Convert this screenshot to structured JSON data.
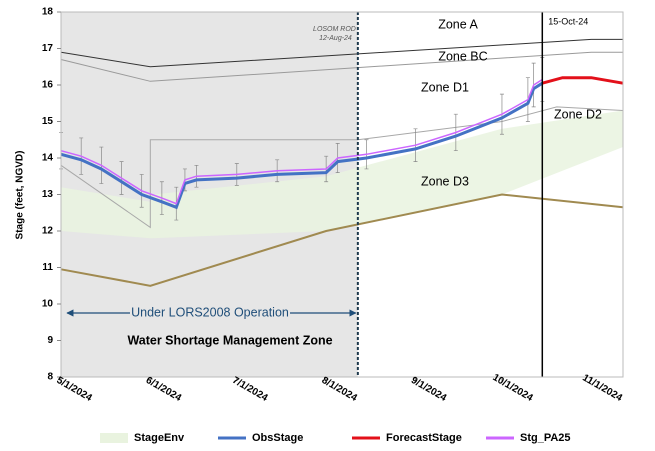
{
  "chart_data": {
    "type": "line",
    "y_label": "Stage (feet, NGVD)",
    "ylim": [
      8,
      18
    ],
    "yticks": [
      8,
      9,
      10,
      11,
      12,
      13,
      14,
      15,
      16,
      17,
      18
    ],
    "xlim": [
      "2024-05-01",
      "2024-11-12"
    ],
    "xticks": [
      {
        "value": "2024-05-01",
        "label": "5/1/2024"
      },
      {
        "value": "2024-06-01",
        "label": "6/1/2024"
      },
      {
        "value": "2024-07-01",
        "label": "7/1/2024"
      },
      {
        "value": "2024-08-01",
        "label": "8/1/2024"
      },
      {
        "value": "2024-09-01",
        "label": "9/1/2024"
      },
      {
        "value": "2024-10-01",
        "label": "10/1/2024"
      },
      {
        "value": "2024-11-01",
        "label": "11/1/2024"
      }
    ],
    "grid": false,
    "legend": "bottom",
    "shade_end": {
      "value": "2024-08-12",
      "label": "12-Aug-24"
    },
    "shade_title": "LOSOM ROD",
    "forecast_date": {
      "value": "2024-10-15",
      "label": "15-Oct-24"
    },
    "annotations": [
      "Zone A",
      "Zone BC",
      "Zone D1",
      "Zone D2",
      "Zone D3",
      "Under LORS2008 Operation",
      "Water Shortage Management Zone"
    ],
    "series": [
      {
        "name": "StageEnv",
        "color": "#e9f3df",
        "x": [
          "2024-05-01",
          "2024-06-01",
          "2024-06-02",
          "2024-08-01",
          "2024-10-01",
          "2024-11-12"
        ],
        "upper": [
          13.2,
          12.8,
          13.0,
          13.5,
          14.8,
          15.3
        ],
        "lower": [
          12.0,
          11.8,
          11.8,
          12.0,
          13.0,
          14.3
        ]
      },
      {
        "name": "ObsStage",
        "color": "#4472c4",
        "x": [
          "2024-05-01",
          "2024-05-08",
          "2024-05-15",
          "2024-05-22",
          "2024-05-29",
          "2024-06-05",
          "2024-06-10",
          "2024-06-13",
          "2024-06-17",
          "2024-07-01",
          "2024-07-15",
          "2024-08-01",
          "2024-08-05",
          "2024-08-15",
          "2024-09-01",
          "2024-09-15",
          "2024-10-01",
          "2024-10-10",
          "2024-10-12",
          "2024-10-15"
        ],
        "values": [
          14.1,
          13.95,
          13.7,
          13.35,
          13.0,
          12.8,
          12.65,
          13.3,
          13.4,
          13.45,
          13.55,
          13.6,
          13.9,
          14.0,
          14.25,
          14.6,
          15.1,
          15.5,
          15.9,
          16.05
        ]
      },
      {
        "name": "ForecastStage",
        "color": "#e3101a",
        "x": [
          "2024-10-15",
          "2024-10-22",
          "2024-11-01",
          "2024-11-12"
        ],
        "values": [
          16.05,
          16.2,
          16.2,
          16.05
        ]
      },
      {
        "name": "Stg_PA25",
        "color": "#cc66ff",
        "x": [
          "2024-05-01",
          "2024-05-08",
          "2024-05-15",
          "2024-05-22",
          "2024-05-29",
          "2024-06-05",
          "2024-06-10",
          "2024-06-13",
          "2024-06-17",
          "2024-07-01",
          "2024-07-15",
          "2024-08-01",
          "2024-08-05",
          "2024-08-15",
          "2024-09-01",
          "2024-09-15",
          "2024-10-01",
          "2024-10-10",
          "2024-10-12",
          "2024-10-15"
        ],
        "values": [
          14.2,
          14.05,
          13.8,
          13.45,
          13.1,
          12.9,
          12.75,
          13.4,
          13.5,
          13.55,
          13.65,
          13.7,
          14.0,
          14.1,
          14.35,
          14.7,
          15.2,
          15.6,
          16.0,
          16.15
        ],
        "errors": [
          0.5,
          0.5,
          0.5,
          0.45,
          0.45,
          0.45,
          0.45,
          0.3,
          0.3,
          0.3,
          0.3,
          0.35,
          0.4,
          0.4,
          0.45,
          0.5,
          0.55,
          0.6,
          0.6,
          0.6
        ]
      }
    ],
    "reference_lines": [
      {
        "color": "#333333",
        "x": [
          "2024-05-01",
          "2024-06-01",
          "2024-11-01",
          "2024-11-12"
        ],
        "values": [
          16.9,
          16.5,
          17.25,
          17.25
        ]
      },
      {
        "color": "#9a9a9a",
        "x": [
          "2024-05-01",
          "2024-06-01",
          "2024-11-01",
          "2024-11-12"
        ],
        "values": [
          16.7,
          16.1,
          16.9,
          16.9
        ]
      },
      {
        "color": "#a8a8a8",
        "x": [
          "2024-05-01",
          "2024-06-01",
          "2024-06-01",
          "2024-08-12",
          "2024-10-01",
          "2024-10-20",
          "2024-11-12"
        ],
        "values": [
          13.8,
          12.1,
          14.5,
          14.5,
          15.0,
          15.4,
          15.3
        ]
      },
      {
        "color": "#a08a50",
        "x": [
          "2024-05-01",
          "2024-06-01",
          "2024-08-01",
          "2024-10-01",
          "2024-11-12"
        ],
        "values": [
          10.95,
          10.5,
          12.0,
          13.0,
          12.65
        ]
      }
    ]
  }
}
